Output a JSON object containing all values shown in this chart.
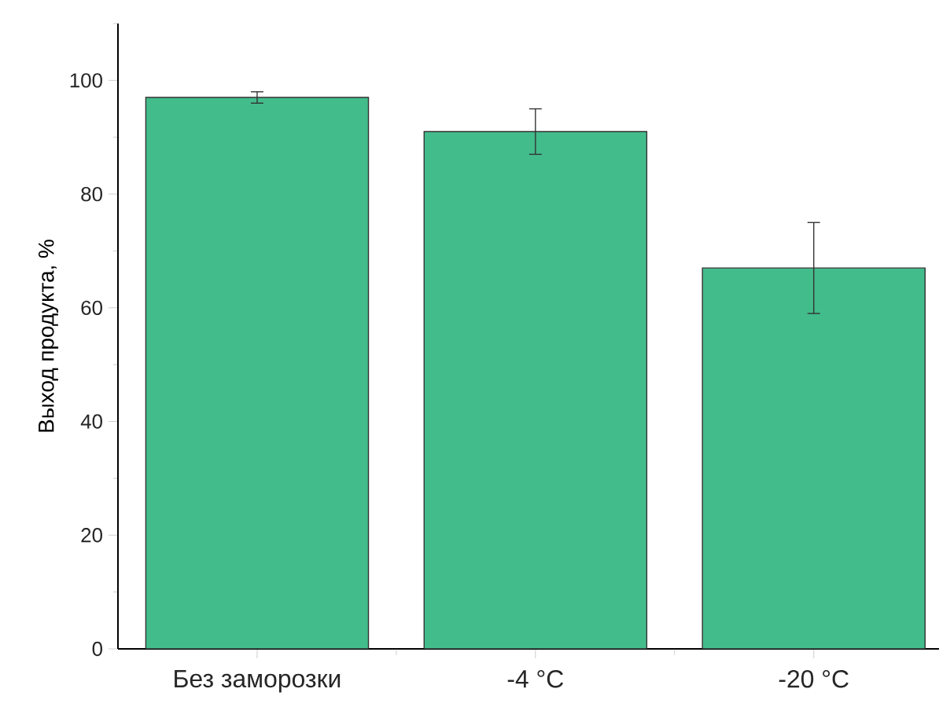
{
  "chart_data": {
    "type": "bar",
    "ylabel": "Выход продукта, %",
    "categories": [
      "Без заморозки",
      "-4 °C",
      "-20 °C"
    ],
    "values": [
      97,
      91,
      67
    ],
    "errors": [
      1,
      4,
      8
    ],
    "color": "#43bc8c",
    "ylim": [
      0,
      110
    ],
    "yticks": [
      0,
      20,
      40,
      60,
      80,
      100
    ],
    "grid": false
  }
}
